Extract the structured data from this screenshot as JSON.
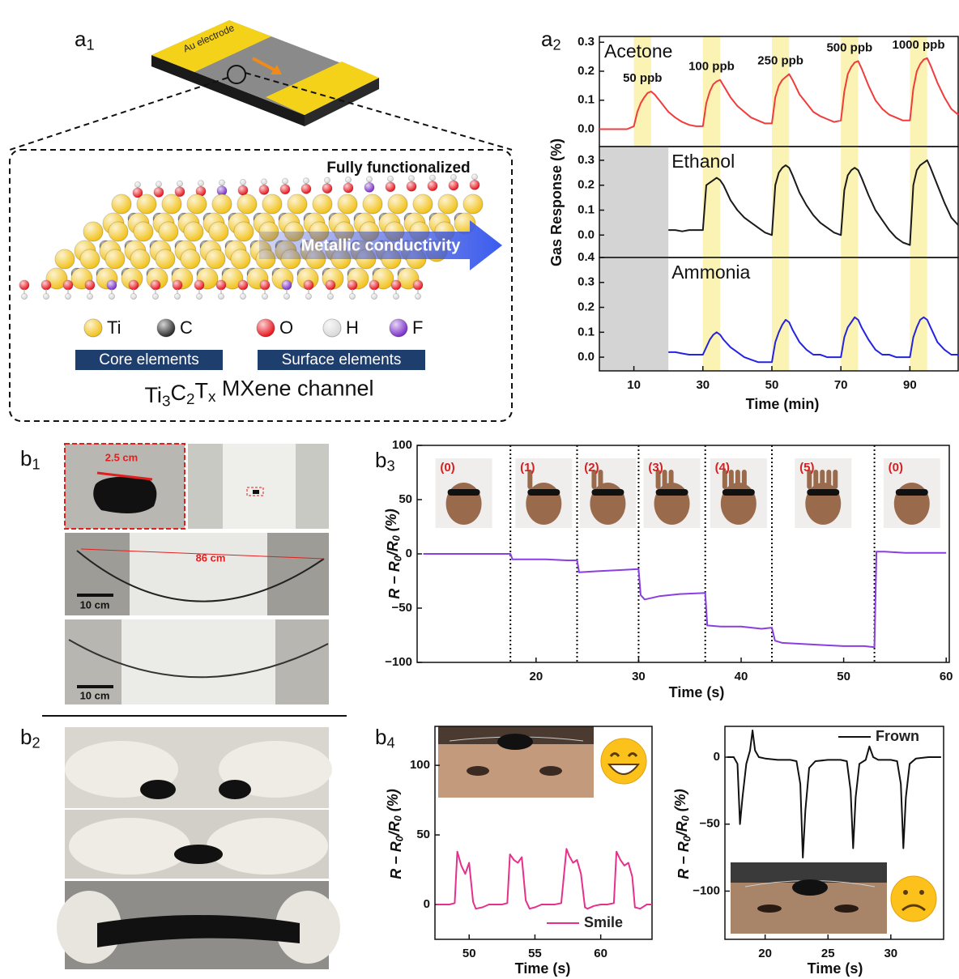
{
  "panel_labels": [
    {
      "letter": "a",
      "sub": "1"
    },
    {
      "letter": "a",
      "sub": "2"
    },
    {
      "letter": "b",
      "sub": "1"
    },
    {
      "letter": "b",
      "sub": "2"
    },
    {
      "letter": "b",
      "sub": "3"
    },
    {
      "letter": "b",
      "sub": "4"
    }
  ],
  "diagram": {
    "electrode_label": "Au electrode",
    "title": "Fully functionalized",
    "arrow_label": "Metallic conductivity",
    "elements": [
      {
        "symbol": "Ti",
        "color": "#f2c21a"
      },
      {
        "symbol": "C",
        "color": "#2b2b2b"
      },
      {
        "symbol": "O",
        "color": "#e8141c"
      },
      {
        "symbol": "H",
        "color": "#d9d9d9"
      },
      {
        "symbol": "F",
        "color": "#7a2ec8"
      }
    ],
    "groups": [
      "Core elements",
      "Surface elements"
    ],
    "caption": [
      {
        "t": "Ti"
      },
      {
        "sub": "3"
      },
      {
        "t": "C"
      },
      {
        "sub": "2"
      },
      {
        "t": "T"
      },
      {
        "sub": "x"
      },
      {
        "t": " MXene channel"
      }
    ]
  },
  "photos": {
    "b1_labels": [
      "2.5 cm",
      "86 cm",
      "10 cm",
      "10 cm"
    ]
  },
  "chart_data": [
    {
      "type": "line",
      "xlim": [
        0,
        104
      ],
      "ylim": [
        -0.06,
        0.32
      ],
      "yticks": [
        {
          "value": 0,
          "label": "0.0"
        },
        0.1,
        0.2,
        0.3
      ],
      "legend": "upper left",
      "bands": [
        [
          10,
          15
        ],
        [
          30,
          35
        ],
        [
          50,
          55
        ],
        [
          70,
          75
        ],
        [
          90,
          95
        ]
      ],
      "band_color": "#fbf3b4",
      "band_labels": [
        "50 ppb",
        "100 ppb",
        "250 ppb",
        "500 ppb",
        "1000 ppb"
      ],
      "x": [
        0,
        2,
        4,
        6,
        8,
        10,
        11,
        12,
        13,
        14,
        15,
        16,
        18,
        20,
        22,
        24,
        26,
        28,
        30,
        31,
        32,
        33,
        34,
        35,
        36,
        38,
        40,
        42,
        44,
        46,
        48,
        50,
        51,
        52,
        53,
        54,
        55,
        56,
        58,
        60,
        62,
        64,
        66,
        68,
        70,
        71,
        72,
        73,
        74,
        75,
        76,
        78,
        80,
        82,
        84,
        86,
        88,
        90,
        91,
        92,
        93,
        94,
        95,
        96,
        98,
        100,
        102,
        104
      ],
      "series": [
        {
          "name": "Acetone",
          "color": "#f03c3c",
          "values": [
            0,
            0,
            0,
            0,
            0,
            0.01,
            0.06,
            0.09,
            0.11,
            0.125,
            0.13,
            0.12,
            0.09,
            0.06,
            0.04,
            0.025,
            0.015,
            0.01,
            0.01,
            0.09,
            0.13,
            0.155,
            0.165,
            0.17,
            0.15,
            0.11,
            0.08,
            0.06,
            0.04,
            0.03,
            0.02,
            0.02,
            0.11,
            0.15,
            0.17,
            0.18,
            0.19,
            0.17,
            0.12,
            0.09,
            0.06,
            0.045,
            0.035,
            0.025,
            0.03,
            0.13,
            0.19,
            0.215,
            0.23,
            0.235,
            0.21,
            0.15,
            0.1,
            0.07,
            0.05,
            0.04,
            0.03,
            0.03,
            0.14,
            0.2,
            0.225,
            0.24,
            0.245,
            0.22,
            0.16,
            0.11,
            0.07,
            0.05
          ]
        }
      ]
    },
    {
      "type": "line",
      "xlim": [
        0,
        104
      ],
      "ylim": [
        -0.09,
        0.355
      ],
      "yticks": [
        {
          "value": 0,
          "label": "0.0"
        },
        0.1,
        0.2,
        0.3
      ],
      "legend": "upper left",
      "shaded": [
        0,
        20
      ],
      "shade_color": "#d4d4d4",
      "bands": [
        [
          30,
          35
        ],
        [
          50,
          55
        ],
        [
          70,
          75
        ],
        [
          90,
          95
        ]
      ],
      "band_color": "#fbf3b4",
      "x": [
        0,
        2,
        4,
        6,
        8,
        10,
        11,
        12,
        13,
        14,
        15,
        16,
        18,
        20,
        22,
        24,
        26,
        28,
        30,
        31,
        32,
        33,
        34,
        35,
        36,
        38,
        40,
        42,
        44,
        46,
        48,
        50,
        51,
        52,
        53,
        54,
        55,
        56,
        58,
        60,
        62,
        64,
        66,
        68,
        70,
        71,
        72,
        73,
        74,
        75,
        76,
        78,
        80,
        82,
        84,
        86,
        88,
        90,
        91,
        92,
        93,
        94,
        95,
        96,
        98,
        100,
        102,
        104
      ],
      "series": [
        {
          "name": "Ethanol",
          "color": "#1a1a1a",
          "values": [
            null,
            null,
            null,
            null,
            null,
            null,
            null,
            null,
            null,
            null,
            null,
            null,
            null,
            0.02,
            0.02,
            0.015,
            0.02,
            0.02,
            0.02,
            0.2,
            0.21,
            0.22,
            0.23,
            0.22,
            0.2,
            0.14,
            0.1,
            0.07,
            0.05,
            0.03,
            0.01,
            0,
            0.2,
            0.25,
            0.27,
            0.28,
            0.27,
            0.24,
            0.17,
            0.12,
            0.08,
            0.05,
            0.03,
            0.01,
            0,
            0.18,
            0.24,
            0.26,
            0.27,
            0.26,
            0.23,
            0.16,
            0.1,
            0.06,
            0.02,
            -0.01,
            -0.03,
            -0.04,
            0.2,
            0.26,
            0.28,
            0.29,
            0.3,
            0.27,
            0.2,
            0.13,
            0.07,
            0.04
          ]
        }
      ]
    },
    {
      "type": "line",
      "xlim": [
        0,
        104
      ],
      "ylim": [
        -0.055,
        0.4
      ],
      "yticks": [
        {
          "value": 0,
          "label": "0.0"
        },
        0.1,
        0.2,
        0.3,
        0.4
      ],
      "xticks": [
        10,
        30,
        50,
        70,
        90
      ],
      "legend": "upper left",
      "xlabel": "Time (min)",
      "ylabel": "Gas Response (%)",
      "shaded": [
        0,
        20
      ],
      "shade_color": "#d4d4d4",
      "bands": [
        [
          30,
          35
        ],
        [
          50,
          55
        ],
        [
          70,
          75
        ],
        [
          90,
          95
        ]
      ],
      "band_color": "#fbf3b4",
      "x": [
        0,
        2,
        4,
        6,
        8,
        10,
        11,
        12,
        13,
        14,
        15,
        16,
        18,
        20,
        22,
        24,
        26,
        28,
        30,
        31,
        32,
        33,
        34,
        35,
        36,
        38,
        40,
        42,
        44,
        46,
        48,
        50,
        51,
        52,
        53,
        54,
        55,
        56,
        58,
        60,
        62,
        64,
        66,
        68,
        70,
        71,
        72,
        73,
        74,
        75,
        76,
        78,
        80,
        82,
        84,
        86,
        88,
        90,
        91,
        92,
        93,
        94,
        95,
        96,
        98,
        100,
        102,
        104
      ],
      "series": [
        {
          "name": "Ammonia",
          "color": "#2424e0",
          "values": [
            null,
            null,
            null,
            null,
            null,
            null,
            null,
            null,
            null,
            null,
            null,
            null,
            null,
            0.02,
            0.02,
            0.015,
            0.01,
            0.01,
            0.01,
            0.04,
            0.07,
            0.09,
            0.1,
            0.09,
            0.07,
            0.04,
            0.02,
            0,
            -0.01,
            -0.02,
            -0.02,
            -0.02,
            0.06,
            0.1,
            0.13,
            0.15,
            0.14,
            0.11,
            0.06,
            0.03,
            0.01,
            0.01,
            0,
            0,
            0,
            0.08,
            0.12,
            0.14,
            0.16,
            0.15,
            0.12,
            0.07,
            0.03,
            0.01,
            0.01,
            0,
            0,
            0,
            0.08,
            0.12,
            0.15,
            0.16,
            0.15,
            0.12,
            0.06,
            0.03,
            0.01,
            0.01
          ]
        }
      ]
    },
    {
      "type": "line",
      "xlim": [
        8.4,
        60.3
      ],
      "ylim": [
        -100,
        100
      ],
      "yticks": [
        {
          "value": -100,
          "label": "−100"
        },
        {
          "value": -50,
          "label": "−50"
        },
        0,
        50,
        100
      ],
      "xticks": [
        20,
        30,
        40,
        50,
        60
      ],
      "xlabel": "Time (s)",
      "ylabel": [
        {
          "t": "R − R"
        },
        {
          "sub": "0"
        },
        {
          "t": "/R"
        },
        {
          "sub": "0"
        },
        {
          "t": " (%)"
        }
      ],
      "dividers": [
        17.5,
        24,
        30,
        36.5,
        43,
        53
      ],
      "stage_labels": [
        "(0)",
        "(1)",
        "(2)",
        "(3)",
        "(4)",
        "(5)",
        "(0)"
      ],
      "x": [
        9,
        11,
        13,
        15,
        17,
        17.5,
        17.7,
        19,
        21,
        23,
        24,
        24.2,
        26,
        28,
        30,
        30.2,
        30.6,
        32,
        34,
        36.5,
        36.7,
        38,
        40,
        42,
        43,
        43.3,
        44,
        46,
        48,
        50,
        52,
        53,
        53.2,
        54,
        56,
        58,
        60
      ],
      "series": [
        {
          "name": null,
          "color": "#8b3fe0",
          "values": [
            0,
            0,
            0,
            0,
            0,
            0,
            -5,
            -5,
            -5,
            -6,
            -6,
            -17,
            -16,
            -15,
            -14,
            -38,
            -42,
            -39,
            -37,
            -36,
            -66,
            -67,
            -67,
            -69,
            -68,
            -80,
            -82,
            -83,
            -84,
            -85,
            -85,
            -86,
            2,
            2,
            1,
            1,
            1
          ]
        }
      ]
    },
    {
      "type": "line",
      "xlim": [
        47.4,
        63.9
      ],
      "ylim": [
        -25,
        128
      ],
      "yticks": [
        0,
        50,
        100
      ],
      "xticks": [
        50,
        55,
        60
      ],
      "legend": "lower right",
      "xlabel": "Time (s)",
      "ylabel": [
        {
          "t": "R − R"
        },
        {
          "sub": "0"
        },
        {
          "t": "/R"
        },
        {
          "sub": "0"
        },
        {
          "t": " (%)"
        }
      ],
      "x": [
        47.5,
        48,
        48.5,
        48.9,
        49.1,
        49.4,
        49.7,
        50,
        50.3,
        50.5,
        51,
        51.5,
        52,
        52.5,
        52.9,
        53.1,
        53.4,
        53.7,
        54,
        54.3,
        54.6,
        55,
        55.5,
        56,
        56.5,
        57,
        57.4,
        57.6,
        57.9,
        58.2,
        58.5,
        58.8,
        59,
        59.5,
        60,
        60.5,
        61,
        61.2,
        61.5,
        61.8,
        62.1,
        62.4,
        62.6,
        63,
        63.5,
        63.9
      ],
      "series": [
        {
          "name": "Smile",
          "color": "#e5308c",
          "values": [
            0,
            0,
            0,
            1,
            38,
            28,
            22,
            30,
            2,
            -3,
            -2,
            0,
            0,
            0,
            1,
            36,
            32,
            30,
            34,
            3,
            -3,
            -2,
            0,
            0,
            0,
            1,
            40,
            35,
            30,
            32,
            22,
            -2,
            -3,
            -1,
            0,
            0,
            1,
            38,
            32,
            28,
            30,
            20,
            -2,
            -3,
            0,
            0
          ]
        }
      ]
    },
    {
      "type": "line",
      "xlim": [
        16.8,
        34.2
      ],
      "ylim": [
        -136,
        23
      ],
      "yticks": [
        {
          "value": -100,
          "label": "−100"
        },
        {
          "value": -50,
          "label": "−50"
        },
        0
      ],
      "xticks": [
        20,
        25,
        30
      ],
      "legend": "upper right",
      "xlabel": "Time (s)",
      "ylabel": [
        {
          "t": "R − R"
        },
        {
          "sub": "0"
        },
        {
          "t": "/R"
        },
        {
          "sub": "0"
        },
        {
          "t": " (%)"
        }
      ],
      "x": [
        17,
        17.5,
        17.8,
        18,
        18.2,
        18.5,
        18.8,
        19,
        19.2,
        19.5,
        20,
        21,
        22,
        22.5,
        22.8,
        23,
        23.2,
        23.5,
        24,
        25,
        26,
        26.5,
        26.8,
        27,
        27.2,
        27.5,
        28,
        28.3,
        28.6,
        29,
        30,
        30.5,
        30.8,
        31,
        31.2,
        31.5,
        32,
        33,
        34
      ],
      "series": [
        {
          "name": "Frown",
          "color": "#111111",
          "values": [
            0,
            0,
            -5,
            -50,
            -30,
            -5,
            5,
            20,
            5,
            0,
            -1,
            -2,
            -2,
            -3,
            -20,
            -75,
            -40,
            -8,
            -3,
            -2,
            -2,
            -3,
            -25,
            -68,
            -30,
            -5,
            -2,
            8,
            0,
            -2,
            -2,
            -3,
            -20,
            -68,
            -30,
            -5,
            -1,
            0,
            0
          ]
        }
      ]
    }
  ]
}
